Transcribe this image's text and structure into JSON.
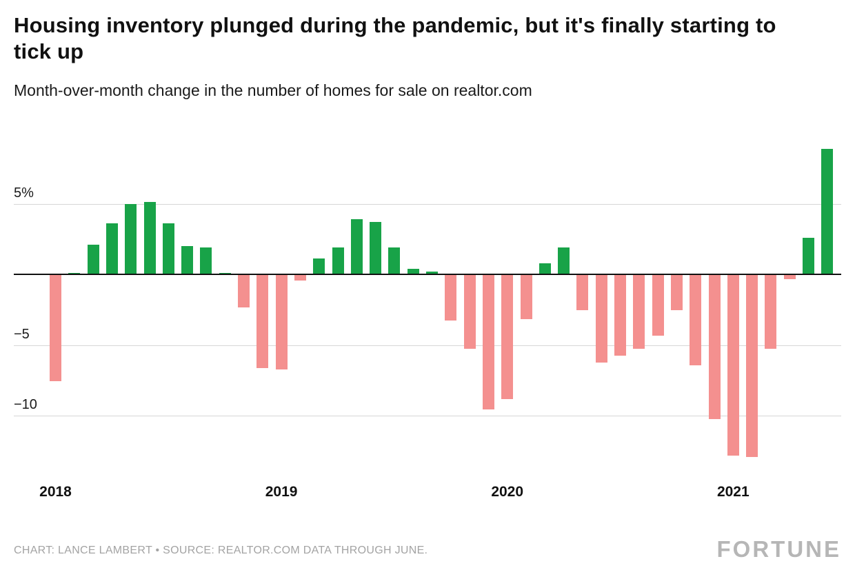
{
  "title": "Housing inventory plunged during the pandemic, but it's finally starting to tick up",
  "subtitle": "Month-over-month change in the number of homes for sale on realtor.com",
  "footer": {
    "credit": "CHART: LANCE LAMBERT • SOURCE: REALTOR.COM DATA THROUGH JUNE.",
    "brand": "FORTUNE"
  },
  "colors": {
    "positive": "#18a348",
    "negative": "#f4908f",
    "grid": "#d6d6d6",
    "zero": "#111111"
  },
  "chart_data": {
    "type": "bar",
    "title": "Housing inventory plunged during the pandemic, but it's finally starting to tick up",
    "subtitle": "Month-over-month change in the number of homes for sale on realtor.com",
    "unit": "%",
    "x": [
      "Jan 2018",
      "Feb 2018",
      "Mar 2018",
      "Apr 2018",
      "May 2018",
      "Jun 2018",
      "Jul 2018",
      "Aug 2018",
      "Sep 2018",
      "Oct 2018",
      "Nov 2018",
      "Dec 2018",
      "Jan 2019",
      "Feb 2019",
      "Mar 2019",
      "Apr 2019",
      "May 2019",
      "Jun 2019",
      "Jul 2019",
      "Aug 2019",
      "Sep 2019",
      "Oct 2019",
      "Nov 2019",
      "Dec 2019",
      "Jan 2020",
      "Feb 2020",
      "Mar 2020",
      "Apr 2020",
      "May 2020",
      "Jun 2020",
      "Jul 2020",
      "Aug 2020",
      "Sep 2020",
      "Oct 2020",
      "Nov 2020",
      "Dec 2020",
      "Jan 2021",
      "Feb 2021",
      "Mar 2021",
      "Apr 2021",
      "May 2021",
      "Jun 2021"
    ],
    "values": [
      -7.5,
      0.1,
      2.1,
      3.6,
      5.0,
      5.1,
      3.6,
      2.0,
      1.9,
      0.1,
      -2.3,
      -6.6,
      -6.7,
      -0.4,
      1.1,
      1.9,
      3.9,
      3.7,
      1.9,
      0.4,
      0.2,
      -3.2,
      -5.2,
      -9.5,
      -8.8,
      -3.1,
      0.8,
      1.9,
      -2.5,
      -6.2,
      -5.7,
      -5.2,
      -4.3,
      -2.5,
      -6.4,
      -10.2,
      -12.8,
      -12.9,
      -5.2,
      -0.3,
      2.6,
      8.9
    ],
    "yticks": [
      {
        "value": 5,
        "label": "5%"
      },
      {
        "value": -5,
        "label": "−5"
      },
      {
        "value": -10,
        "label": "−10"
      }
    ],
    "xticks": [
      {
        "index": 0,
        "label": "2018"
      },
      {
        "index": 12,
        "label": "2019"
      },
      {
        "index": 24,
        "label": "2020"
      },
      {
        "index": 36,
        "label": "2021"
      }
    ],
    "ylim": [
      -13.8,
      9.5
    ],
    "grid": true,
    "legend": false
  }
}
